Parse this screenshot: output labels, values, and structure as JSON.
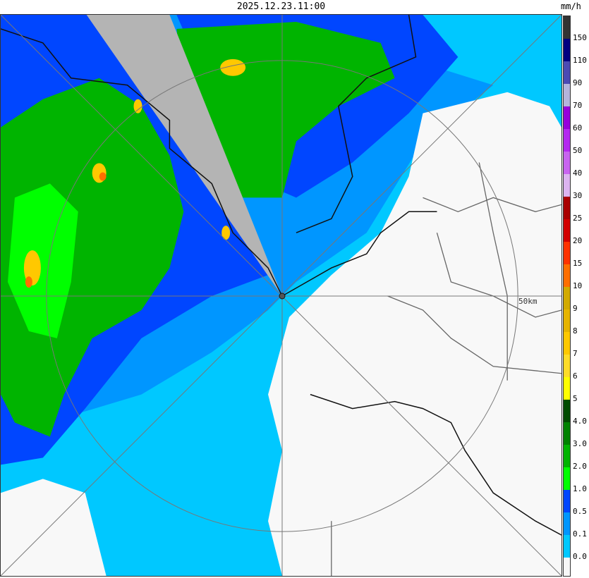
{
  "timestamp": "2025.12.23.11:00",
  "unit": "mm/h",
  "range_ring_label": "50km",
  "legend": {
    "labels": [
      "150",
      "110",
      "90",
      "70",
      "60",
      "50",
      "40",
      "30",
      "25",
      "20",
      "15",
      "10",
      "9",
      "8",
      "7",
      "6",
      "5",
      "4.0",
      "3.0",
      "2.0",
      "1.0",
      "0.5",
      "0.1",
      "0.0"
    ],
    "colors": [
      "#333333",
      "#000080",
      "#4b4bb4",
      "#b4b4dc",
      "#9600dc",
      "#b428f0",
      "#c864f0",
      "#dcb4f0",
      "#aa0000",
      "#d20000",
      "#ff3200",
      "#ff6e00",
      "#d2aa00",
      "#e6b400",
      "#ffc800",
      "#ffdc28",
      "#ffff00",
      "#004b00",
      "#008200",
      "#00b400",
      "#00ff00",
      "#0046ff",
      "#0096ff",
      "#00c8ff",
      "#f8f8f8"
    ]
  }
}
